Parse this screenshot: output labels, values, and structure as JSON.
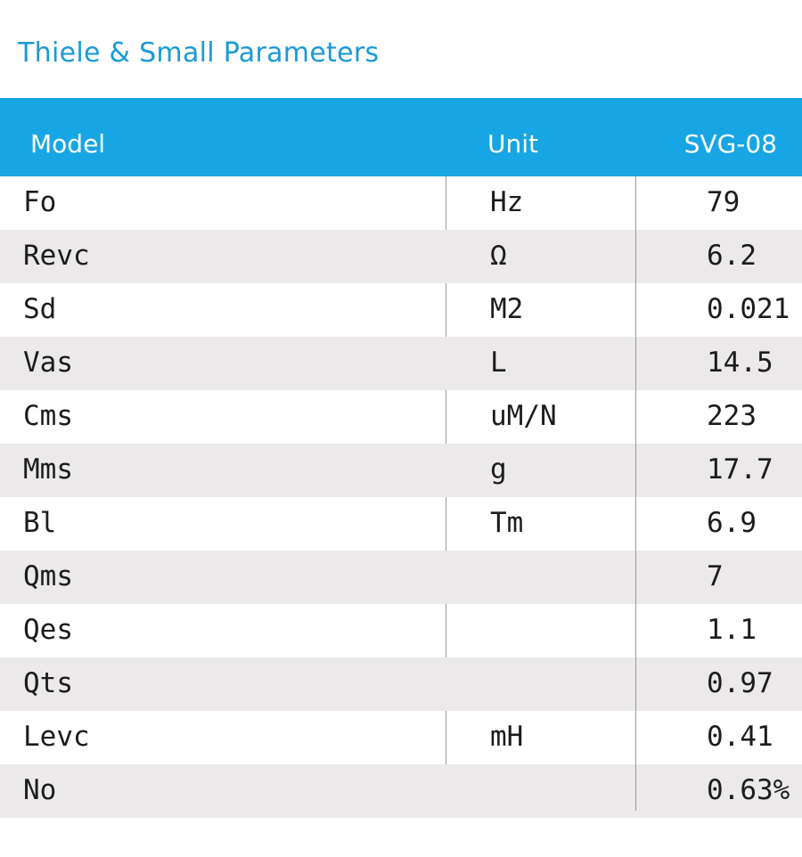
{
  "title": "Thiele & Small Parameters",
  "header": {
    "model": "Model",
    "unit": "Unit",
    "value": "SVG-08"
  },
  "rows": [
    {
      "param": "Fo",
      "unit": "Hz",
      "value": "79"
    },
    {
      "param": "Revc",
      "unit": "Ω",
      "value": "6.2"
    },
    {
      "param": "Sd",
      "unit": "M2",
      "value": "0.021"
    },
    {
      "param": "Vas",
      "unit": "L",
      "value": "14.5"
    },
    {
      "param": "Cms",
      "unit": "uM/N",
      "value": "223"
    },
    {
      "param": "Mms",
      "unit": "g",
      "value": "17.7"
    },
    {
      "param": "Bl",
      "unit": "Tm",
      "value": "6.9"
    },
    {
      "param": "Qms",
      "unit": "",
      "value": "7"
    },
    {
      "param": "Qes",
      "unit": "",
      "value": "1.1"
    },
    {
      "param": "Qts",
      "unit": "",
      "value": "0.97"
    },
    {
      "param": "Levc",
      "unit": "mH",
      "value": "0.41"
    },
    {
      "param": "No",
      "unit": "",
      "value": "0.63%"
    }
  ],
  "colors": {
    "accent": "#17a6e3",
    "title": "#1a9ad6",
    "row_shade": "#ebe9ea"
  }
}
